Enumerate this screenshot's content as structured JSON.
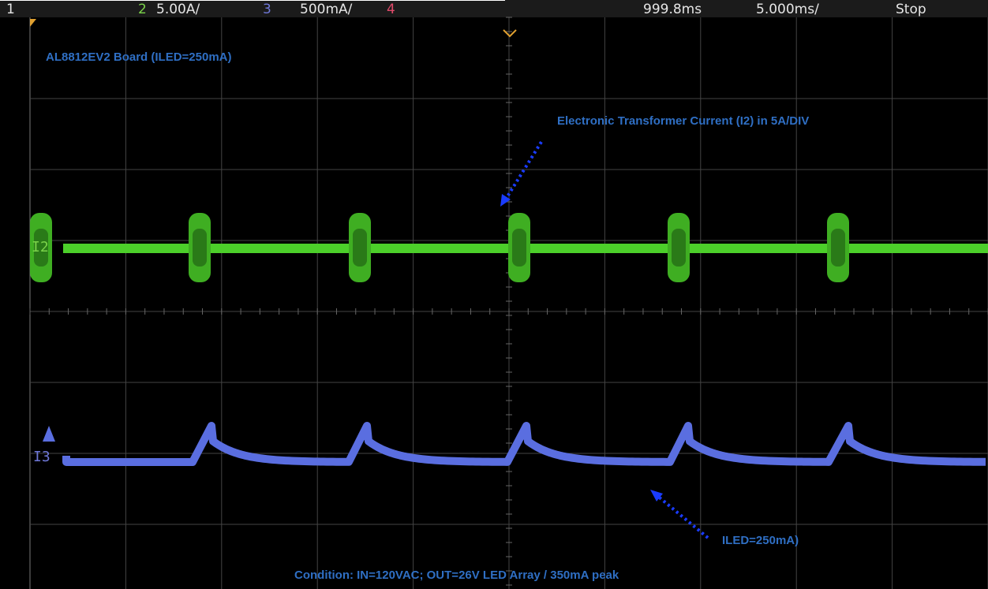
{
  "header": {
    "channel_1": "1",
    "channel_2": "2",
    "channel_2_scale": "5.00A/",
    "channel_3": "3",
    "channel_3_scale": "500mA/",
    "channel_4": "4",
    "time_position": "999.8ms",
    "time_scale": "5.000ms/",
    "run_state": "Stop"
  },
  "traces": {
    "green": "I2",
    "blue": "I3"
  },
  "annotations": {
    "board": "AL8812EV2 Board (ILED=250mA)",
    "transformer": "Electronic Transformer Current (I2) in 5A/DIV",
    "iled": "ILED=250mA)",
    "condition": "Condition: IN=120VAC; OUT=26V LED Array / 350mA peak"
  }
}
